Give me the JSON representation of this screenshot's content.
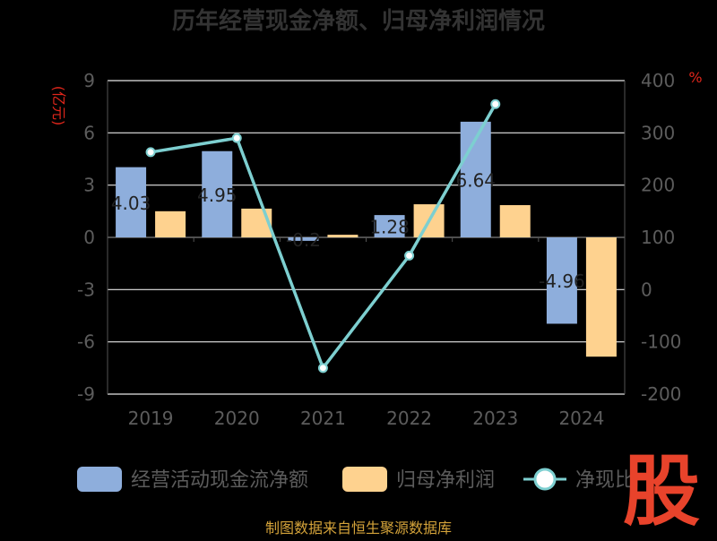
{
  "chart_data": {
    "type": "bar",
    "title": "历年经营现金净额、归母净利润情况",
    "categories": [
      "2019",
      "2020",
      "2021",
      "2022",
      "2023",
      "2024"
    ],
    "series": [
      {
        "name": "经营活动现金流净额",
        "type": "bar",
        "axis": "left",
        "color": "#8eaedc",
        "values": [
          4.03,
          4.95,
          -0.2,
          1.28,
          6.64,
          -4.96
        ],
        "labels": [
          "4.03",
          "4.95",
          "-0.2",
          "1.28",
          "6.64",
          "-4.96"
        ]
      },
      {
        "name": "归母净利润",
        "type": "bar",
        "axis": "left",
        "color": "#fed28f",
        "values": [
          1.5,
          1.65,
          0.15,
          1.9,
          1.85,
          -6.85
        ]
      },
      {
        "name": "净现比",
        "type": "line",
        "axis": "right",
        "color": "#7dcfd0",
        "values": [
          263,
          290,
          -150,
          65,
          355,
          null
        ]
      }
    ],
    "yAxisLeft": {
      "unit": "(亿元)",
      "min": -9,
      "max": 9,
      "ticks": [
        9,
        6,
        3,
        0,
        -3,
        -6,
        -9
      ]
    },
    "yAxisRight": {
      "unit": "%",
      "min": -200,
      "max": 400,
      "ticks": [
        400,
        300,
        200,
        100,
        0,
        -100,
        -200
      ]
    },
    "grid": true,
    "legend": {
      "position": "bottom"
    }
  },
  "source_text": "制图数据来自恒生聚源数据库",
  "watermark": "股"
}
